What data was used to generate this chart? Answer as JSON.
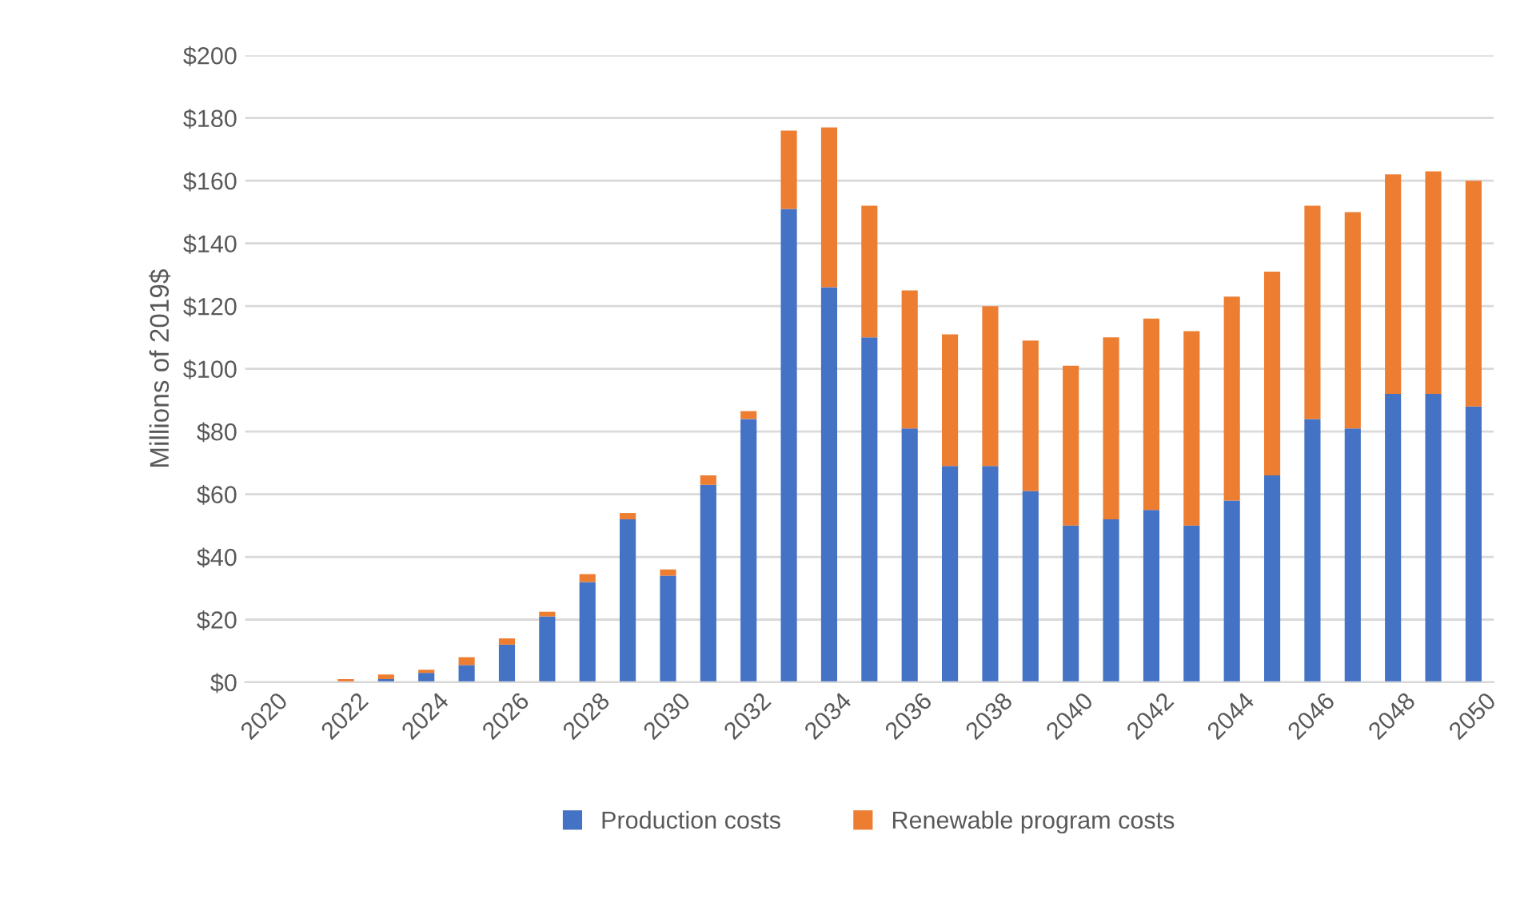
{
  "chart_data": {
    "type": "bar",
    "stacked": true,
    "ylabel": "Millions of 2019$",
    "categories": [
      "2020",
      null,
      "2022",
      null,
      "2024",
      null,
      "2026",
      null,
      "2028",
      null,
      "2030",
      null,
      "2032",
      null,
      "2034",
      null,
      "2036",
      null,
      "2038",
      null,
      "2040",
      null,
      "2042",
      null,
      "2044",
      null,
      "2046",
      null,
      "2048",
      null,
      "2050"
    ],
    "series": [
      {
        "name": "Production costs",
        "color": "#4472c4",
        "values": [
          0,
          0,
          0,
          1,
          3,
          5.5,
          12,
          21,
          32,
          52,
          34,
          63,
          84,
          151,
          126,
          110,
          81,
          69,
          69,
          61,
          50,
          52,
          55,
          50,
          58,
          66,
          84,
          81,
          92,
          92,
          88
        ]
      },
      {
        "name": "Renewable program costs",
        "color": "#ed7d31",
        "values": [
          0,
          0,
          1,
          1.5,
          1,
          2.5,
          2,
          1.5,
          2.5,
          2,
          2,
          3,
          2.5,
          25,
          51,
          42,
          44,
          42,
          51,
          48,
          51,
          58,
          61,
          62,
          65,
          65,
          68,
          69,
          70,
          71,
          72
        ]
      }
    ],
    "ylim": [
      0,
      200
    ],
    "yticks": [
      {
        "value": 0,
        "label": "$0"
      },
      {
        "value": 20,
        "label": "$20"
      },
      {
        "value": 40,
        "label": "$40"
      },
      {
        "value": 60,
        "label": "$60"
      },
      {
        "value": 80,
        "label": "$80"
      },
      {
        "value": 100,
        "label": "$100"
      },
      {
        "value": 120,
        "label": "$120"
      },
      {
        "value": 140,
        "label": "$140"
      },
      {
        "value": 160,
        "label": "$160"
      },
      {
        "value": 180,
        "label": "$180"
      },
      {
        "value": 200,
        "label": "$200"
      }
    ],
    "grid": "y",
    "legend": "bottom"
  }
}
